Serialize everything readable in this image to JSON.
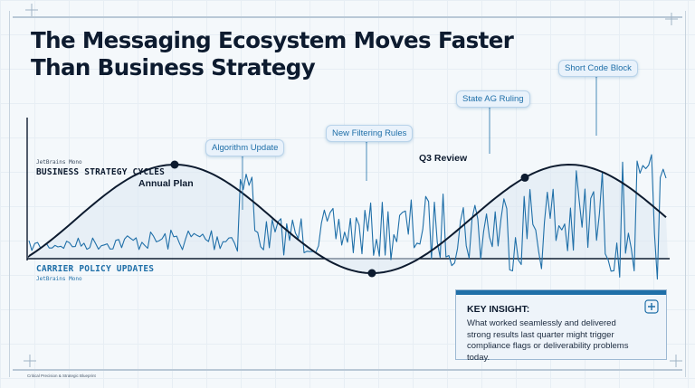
{
  "title": {
    "line1": "The Messaging Ecosystem Moves Faster",
    "line2": "Than Business Strategy"
  },
  "business": {
    "font_note": "JetBrains Mono",
    "label": "BUSINESS STRATEGY CYCLES"
  },
  "carrier": {
    "label": "CARRIER POLICY UPDATES",
    "font_note": "JetBrains Mono"
  },
  "callouts": {
    "algorithm": "Algorithm Update",
    "filtering": "New Filtering Rules",
    "state_ag": "State AG Ruling",
    "short_code": "Short Code Block"
  },
  "milestones": {
    "annual_plan": "Annual Plan",
    "q3_review": "Q3 Review"
  },
  "insight": {
    "heading": "KEY INSIGHT:",
    "body": "What worked seamlessly and delivered strong results last quarter might trigger compliance flags or deliverability problems today."
  },
  "footer": "Critical Precision & Strategic Blueprint",
  "colors": {
    "navy": "#0d1b2f",
    "accent_blue": "#1f6fa8",
    "fill_blue": "#dce8f3",
    "grid": "#dde7ef"
  },
  "icons": [
    "crosshair-icon",
    "plus-badge-icon"
  ]
}
